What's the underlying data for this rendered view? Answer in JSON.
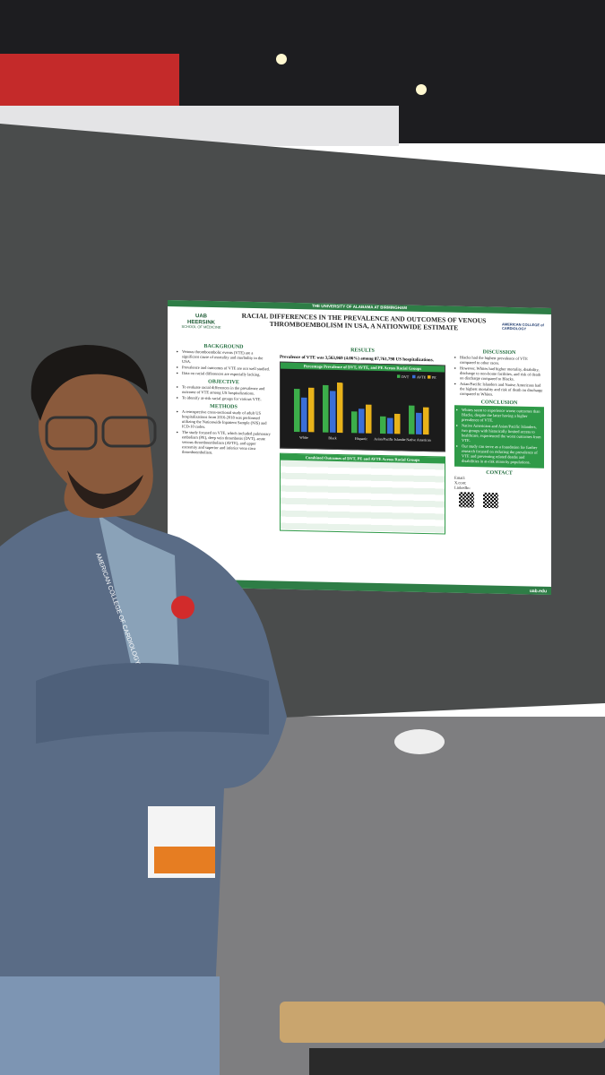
{
  "poster": {
    "university": "THE UNIVERSITY OF ALABAMA AT BIRMINGHAM",
    "logo": {
      "mark": "UAB",
      "name": "HEERSINK",
      "school": "SCHOOL OF MEDICINE"
    },
    "college": "AMERICAN COLLEGE of CARDIOLOGY",
    "title": "RACIAL DIFFERENCES IN THE PREVALENCE AND OUTCOMES OF VENOUS THROMBOEMBOLISM IN USA, A NATIONWIDE ESTIMATE",
    "sections": [
      {
        "heading": "BACKGROUND",
        "items": [
          "Venous thromboembolic events (VTE) are a significant cause of mortality and morbidity in the USA.",
          "Prevalence and outcomes of VTE are not well studied.",
          "Data on racial differences are especially lacking."
        ]
      },
      {
        "heading": "OBJECTIVE",
        "items": [
          "To evaluate racial differences in the prevalence and outcome of VTE among US hospitalizations.",
          "To identify at-risk racial groups for various VTE."
        ]
      },
      {
        "heading": "METHODS",
        "items": [
          "A retrospective cross-sectional study of adult US hospitalizations from 2016-2018 was performed utilizing the Nationwide Inpatient Sample (NIS) and ICD-10 codes.",
          "The study focused on VTE, which included pulmonary embolism (PE), deep vein thrombosis (DVT), acute venous thromboembolism (AVTE), and upper extremity and superior and inferior vena cava thromboembolism."
        ]
      },
      {
        "heading": "DISCUSSION",
        "items": [
          "Blacks had the highest prevalence of VTE compared to other races.",
          "However, Whites had higher mortality, disability, discharge to non-home facilities, and risk of death on discharge compared to Blacks.",
          "Asian/Pacific Islanders and Native Americans had the highest mortality and risk of death on discharge compared to Whites."
        ]
      },
      {
        "heading": "CONCLUSION",
        "items": [
          "Whites seem to experience worse outcomes than Blacks, despite the latter having a higher prevalence of VTE.",
          "Native Americans and Asian/Pacific Islanders, two groups with historically limited access to healthcare, experienced the worst outcomes from VTE.",
          "Our study can serve as a foundation for further research focused on reducing the prevalence of VTE and preventing related deaths and disabilities in at-risk minority populations."
        ]
      }
    ],
    "results": {
      "heading": "RESULTS",
      "summary": "Prevalence of VTE was 3,563,969 (4.06%) among 87,761,798 US hospitalizations.",
      "chart_title": "Percentage Prevalence of DVT, AVTE, and PE Across Racial Groups",
      "legend": [
        "DVT",
        "AVTE",
        "PE"
      ],
      "categories": [
        "White",
        "Black",
        "Hispanic",
        "Asian/Pacific Islander",
        "Native American"
      ],
      "table_title": "Combined Outcomes of DVT, PE and AVTE Across Racial Groups"
    },
    "contact": {
      "heading": "CONTACT",
      "labels": [
        "Email:",
        "X.com:",
        "LinkedIn:"
      ]
    },
    "footer": "uab.edu"
  },
  "badge": {
    "lanyard": "AMERICAN COLLEGE OF CARDIOLOGY"
  }
}
